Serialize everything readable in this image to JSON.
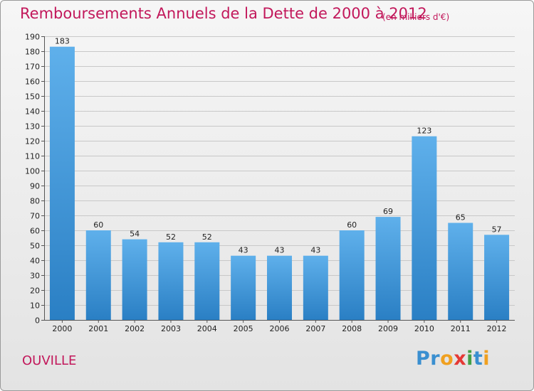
{
  "header": {
    "title": "Remboursements Annuels de la Dette de 2000 à 2012",
    "unit_note": "(en milliers d'€)"
  },
  "footer": {
    "commune": "OUVILLE",
    "logo_letters": [
      {
        "char": "P",
        "color": "#3a8fd0"
      },
      {
        "char": "r",
        "color": "#3a8fd0"
      },
      {
        "char": "o",
        "color": "#f0a020"
      },
      {
        "char": "x",
        "color": "#e53935"
      },
      {
        "char": "i",
        "color": "#43a047"
      },
      {
        "char": "t",
        "color": "#3a8fd0"
      },
      {
        "char": "i",
        "color": "#f0a020"
      }
    ]
  },
  "colors": {
    "accent_text": "#c2185b",
    "bar_top": "#5fb0eb",
    "bar_bottom": "#2a7fc4",
    "grid": "#c8c8c8"
  },
  "chart_data": {
    "type": "bar",
    "categories": [
      "2000",
      "2001",
      "2002",
      "2003",
      "2004",
      "2005",
      "2006",
      "2007",
      "2008",
      "2009",
      "2010",
      "2011",
      "2012"
    ],
    "values": [
      183,
      60,
      54,
      52,
      52,
      43,
      43,
      43,
      60,
      69,
      123,
      65,
      57
    ],
    "ylim": [
      0,
      190
    ],
    "ytick_step": 10,
    "grid": true,
    "show_value_labels": true,
    "xlabel": "",
    "ylabel": ""
  }
}
